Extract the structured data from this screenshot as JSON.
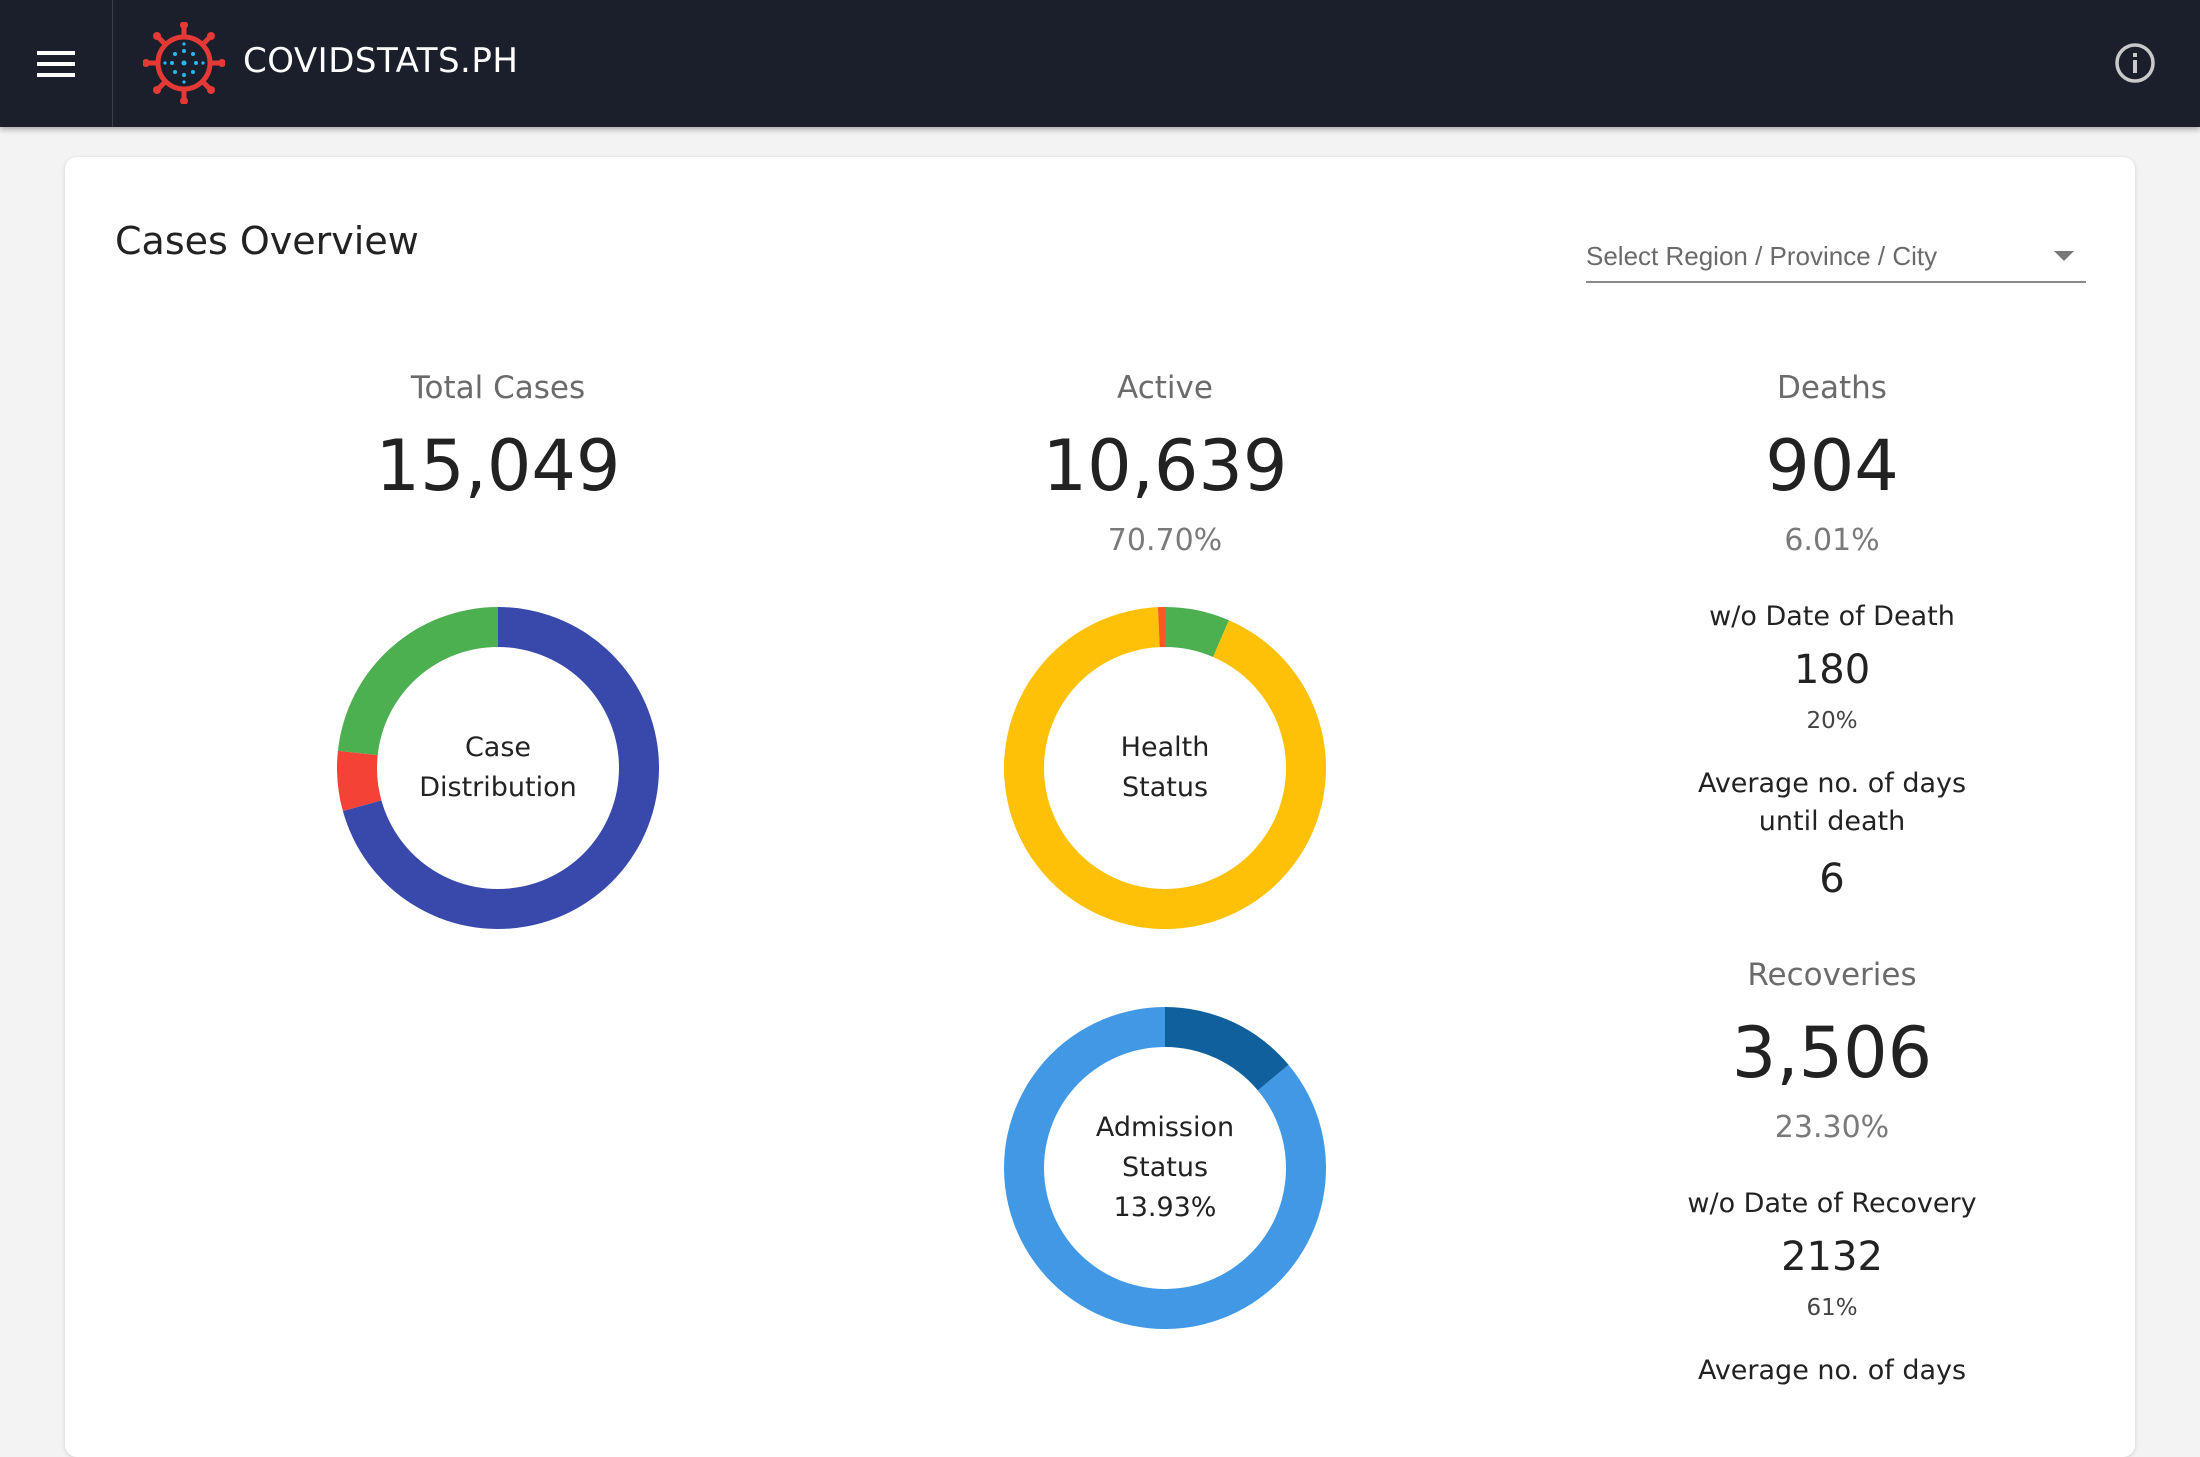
{
  "header": {
    "brand": "COVIDSTATS.PH",
    "menu_icon": "hamburger-menu-icon",
    "logo_icon": "virus-logo-icon",
    "info_icon": "info-icon"
  },
  "overview": {
    "title": "Cases Overview",
    "select_placeholder": "Select Region / Province / City"
  },
  "total": {
    "label": "Total Cases",
    "value": "15,049",
    "donut_label_1": "Case",
    "donut_label_2": "Distribution"
  },
  "active": {
    "label": "Active",
    "value": "10,639",
    "pct": "70.70%",
    "donut_label_1": "Health",
    "donut_label_2": "Status"
  },
  "admission": {
    "donut_label_1": "Admission",
    "donut_label_2": "Status",
    "donut_label_3": "13.93%"
  },
  "deaths": {
    "label": "Deaths",
    "value": "904",
    "pct": "6.01%",
    "wo_date_label": "w/o Date of Death",
    "wo_date_value": "180",
    "wo_date_pct": "20%",
    "avg_label_1": "Average no. of days",
    "avg_label_2": "until death",
    "avg_value": "6"
  },
  "recoveries": {
    "label": "Recoveries",
    "value": "3,506",
    "pct": "23.30%",
    "wo_date_label": "w/o Date of Recovery",
    "wo_date_value": "2132",
    "wo_date_pct": "61%",
    "avg_label_1": "Average no. of days"
  },
  "chart_data": [
    {
      "type": "pie",
      "name": "Case Distribution",
      "slices": [
        {
          "label": "Active",
          "value": 70.7,
          "color": "#3949ab"
        },
        {
          "label": "Deaths",
          "value": 6.01,
          "color": "#f44336"
        },
        {
          "label": "Recoveries",
          "value": 23.3,
          "color": "#4caf50"
        }
      ]
    },
    {
      "type": "pie",
      "name": "Health Status",
      "slices": [
        {
          "label": "segment-1",
          "value": 6.5,
          "color": "#4caf50"
        },
        {
          "label": "segment-2",
          "value": 92.8,
          "color": "#ffc107"
        },
        {
          "label": "segment-3",
          "value": 0.7,
          "color": "#ff5722"
        }
      ]
    },
    {
      "type": "pie",
      "name": "Admission Status",
      "slices": [
        {
          "label": "segment-1",
          "value": 13.93,
          "color": "#10609e"
        },
        {
          "label": "segment-2",
          "value": 86.07,
          "color": "#4199e6"
        }
      ]
    }
  ]
}
